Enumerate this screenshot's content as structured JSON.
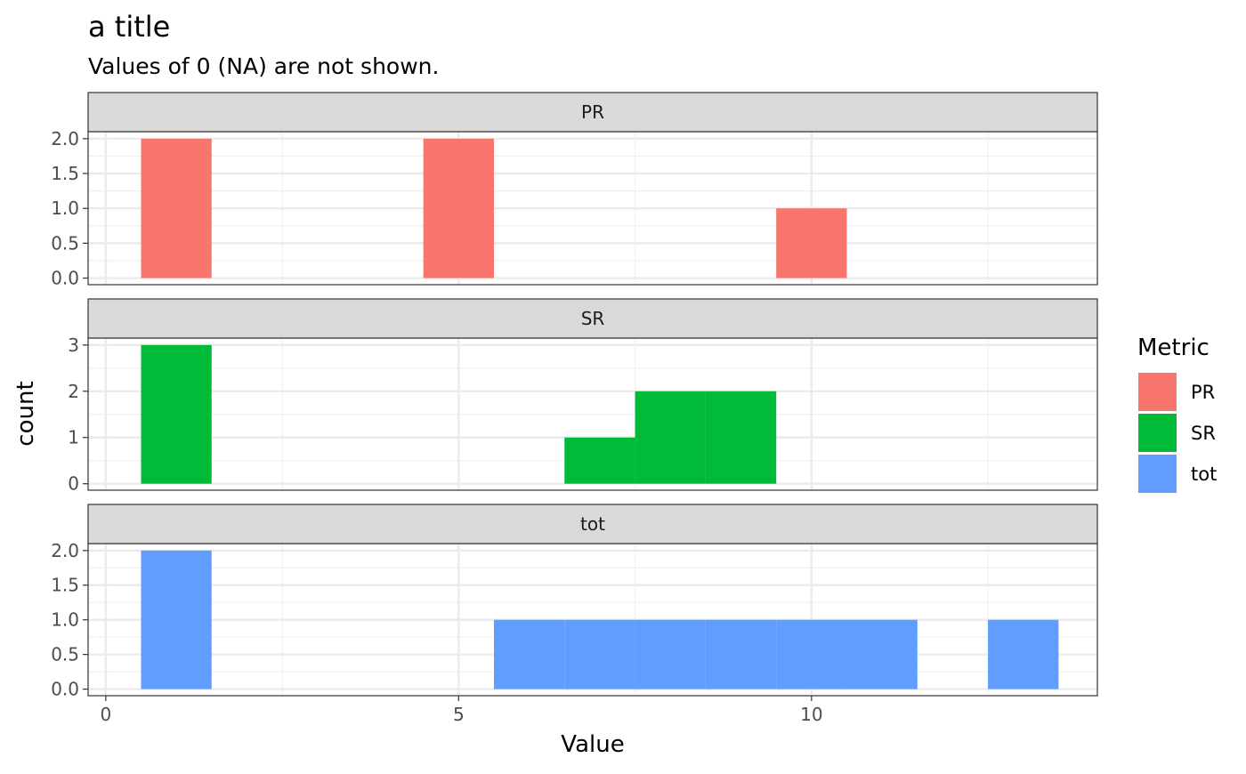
{
  "chart_data": {
    "type": "bar",
    "title": "a title",
    "subtitle": "Values of 0 (NA) are not shown.",
    "xlabel": "Value",
    "ylabel": "count",
    "xlim": [
      -0.25,
      14.05
    ],
    "x_ticks": [
      0,
      5,
      10
    ],
    "x_tick_labels": [
      "0",
      "5",
      "10"
    ],
    "bin_width": 1,
    "grid": true,
    "legend": {
      "title": "Metric",
      "position": "right",
      "entries": [
        "PR",
        "SR",
        "tot"
      ]
    },
    "facets": [
      {
        "name": "PR",
        "color": "#F8766D",
        "ylim": [
          -0.095,
          2.1
        ],
        "y_ticks": [
          0,
          0.5,
          1,
          1.5,
          2
        ],
        "y_tick_labels": [
          "0.0",
          "0.5",
          "1.0",
          "1.5",
          "2.0"
        ],
        "bins": [
          {
            "x": 1,
            "count": 2
          },
          {
            "x": 5,
            "count": 2
          },
          {
            "x": 10,
            "count": 1
          }
        ]
      },
      {
        "name": "SR",
        "color": "#00BA38",
        "ylim": [
          -0.14,
          3.15
        ],
        "y_ticks": [
          0,
          1,
          2,
          3
        ],
        "y_tick_labels": [
          "0",
          "1",
          "2",
          "3"
        ],
        "bins": [
          {
            "x": 1,
            "count": 3
          },
          {
            "x": 7,
            "count": 1
          },
          {
            "x": 8,
            "count": 2
          },
          {
            "x": 9,
            "count": 2
          }
        ]
      },
      {
        "name": "tot",
        "color": "#619CFF",
        "ylim": [
          -0.095,
          2.1
        ],
        "y_ticks": [
          0,
          0.5,
          1,
          1.5,
          2
        ],
        "y_tick_labels": [
          "0.0",
          "0.5",
          "1.0",
          "1.5",
          "2.0"
        ],
        "bins": [
          {
            "x": 1,
            "count": 2
          },
          {
            "x": 6,
            "count": 1
          },
          {
            "x": 7,
            "count": 1
          },
          {
            "x": 8,
            "count": 1
          },
          {
            "x": 9,
            "count": 1
          },
          {
            "x": 10,
            "count": 1
          },
          {
            "x": 11,
            "count": 1
          },
          {
            "x": 13,
            "count": 1
          }
        ]
      }
    ]
  }
}
